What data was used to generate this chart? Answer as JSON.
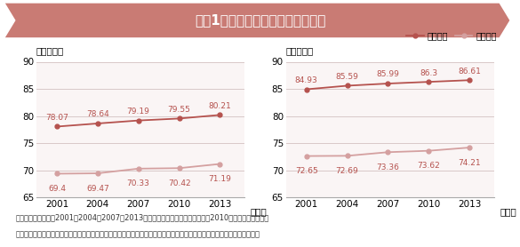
{
  "title": "図袆1　平均寿命と健康寿命の推移",
  "title_bg_color": "#c97b74",
  "title_text_color": "#ffffff",
  "years": [
    2001,
    2004,
    2007,
    2010,
    2013
  ],
  "male_avg": [
    78.07,
    78.64,
    79.19,
    79.55,
    80.21
  ],
  "male_healthy": [
    69.4,
    69.47,
    70.33,
    70.42,
    71.19
  ],
  "female_avg": [
    84.93,
    85.59,
    85.99,
    86.3,
    86.61
  ],
  "female_healthy": [
    72.65,
    72.69,
    73.36,
    73.62,
    74.21
  ],
  "avg_color": "#b5524e",
  "healthy_color": "#d4a0a0",
  "ylim": [
    65,
    90
  ],
  "yticks": [
    65,
    70,
    75,
    80,
    85,
    90
  ],
  "plot_bg_color": "#faf5f5",
  "outer_bg": "#f5f0f0",
  "grid_color": "#d8c8c8",
  "label_male": "（年）男性",
  "label_female": "（年）女性",
  "xlabel_suffix": "（年）",
  "legend_avg": "平均寿命",
  "legend_healthy": "健康寿命",
  "footnote1": "出典：平均寿命は、2001、2004、2007、2013年は厚生労働省「簡易生命表」、2010年は「完全生命表」",
  "footnote2": "　　　健康寿命は、厚生労働科学研究費補助金「健康寿命における将来予測と生活習慣病対策の費用対効果に関する研究」"
}
